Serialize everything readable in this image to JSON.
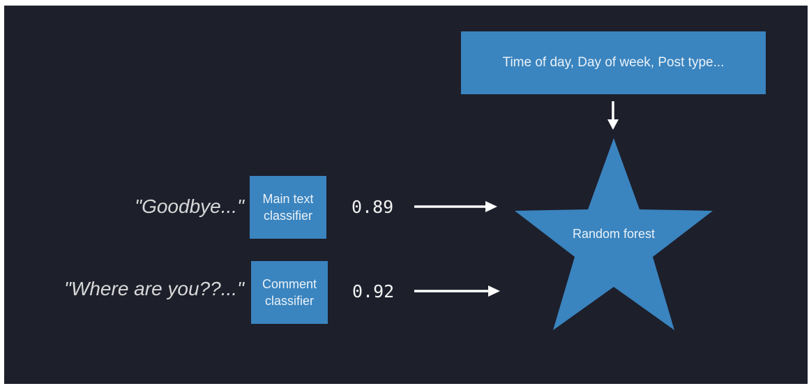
{
  "diagram": {
    "features_label": "Time of day, Day of week, Post type...",
    "inputs": [
      {
        "quote": "\"Goodbye...\"",
        "classifier": "Main text\nclassifier",
        "score": "0.89"
      },
      {
        "quote": "\"Where are you??...\"",
        "classifier": "Comment\nclassifier",
        "score": "0.92"
      }
    ],
    "model_label": "Random forest"
  },
  "colors": {
    "background": "#1d1f2b",
    "box_fill": "#3a84bf",
    "arrow": "#ffffff"
  }
}
